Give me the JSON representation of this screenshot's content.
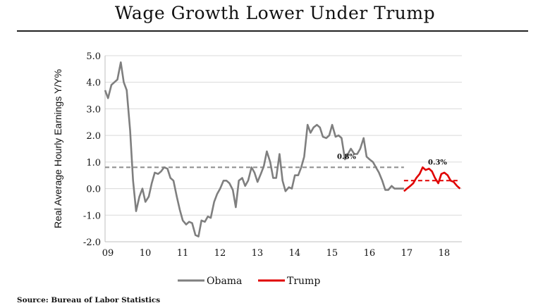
{
  "header": {
    "title": "Wage Growth Lower Under Trump"
  },
  "source": "Source: Bureau of Labor Statistics",
  "chart_data": {
    "type": "line",
    "title": "Wage Growth Lower Under Trump",
    "xlabel": "",
    "ylabel": "Real Average Hourly Earnings Y/Y%",
    "xlim": [
      2009,
      2018.55
    ],
    "ylim": [
      -2.0,
      5.0
    ],
    "yticks": [
      5.0,
      4.0,
      3.0,
      2.0,
      1.0,
      0.0,
      -1.0,
      -2.0
    ],
    "ytick_labels": [
      "5.0",
      "4.0",
      "3.0",
      "2.0",
      "1.0",
      "0.0",
      "-1.0",
      "-2.0"
    ],
    "xticks": [
      2009,
      2010,
      2011,
      2012,
      2013,
      2014,
      2015,
      2016,
      2017,
      2018
    ],
    "xtick_labels": [
      "09",
      "10",
      "11",
      "12",
      "13",
      "14",
      "15",
      "16",
      "17",
      "18"
    ],
    "grid": true,
    "legend_position": "bottom",
    "series": [
      {
        "name": "Obama",
        "color": "#7f7f7f",
        "x": [
          2009.0,
          2009.08,
          2009.17,
          2009.25,
          2009.33,
          2009.42,
          2009.5,
          2009.58,
          2009.67,
          2009.75,
          2009.83,
          2009.92,
          2010.0,
          2010.08,
          2010.17,
          2010.25,
          2010.33,
          2010.42,
          2010.5,
          2010.58,
          2010.67,
          2010.75,
          2010.83,
          2010.92,
          2011.0,
          2011.08,
          2011.17,
          2011.25,
          2011.33,
          2011.42,
          2011.5,
          2011.58,
          2011.67,
          2011.75,
          2011.83,
          2011.92,
          2012.0,
          2012.08,
          2012.17,
          2012.25,
          2012.33,
          2012.42,
          2012.5,
          2012.58,
          2012.67,
          2012.75,
          2012.83,
          2012.92,
          2013.0,
          2013.08,
          2013.17,
          2013.25,
          2013.33,
          2013.42,
          2013.5,
          2013.58,
          2013.67,
          2013.75,
          2013.83,
          2013.92,
          2014.0,
          2014.08,
          2014.17,
          2014.25,
          2014.33,
          2014.42,
          2014.5,
          2014.58,
          2014.67,
          2014.75,
          2014.83,
          2014.92,
          2015.0,
          2015.08,
          2015.17,
          2015.25,
          2015.33,
          2015.42,
          2015.5,
          2015.58,
          2015.67,
          2015.75,
          2015.83,
          2015.92,
          2016.0,
          2016.08,
          2016.17,
          2016.25,
          2016.33,
          2016.42,
          2016.5,
          2016.58,
          2016.67,
          2016.75,
          2016.83,
          2016.92,
          2017.0
        ],
        "values": [
          3.7,
          3.4,
          3.9,
          4.0,
          4.1,
          4.75,
          4.0,
          3.7,
          2.2,
          0.3,
          -0.85,
          -0.3,
          0.0,
          -0.5,
          -0.3,
          0.2,
          0.6,
          0.55,
          0.65,
          0.8,
          0.75,
          0.4,
          0.3,
          -0.3,
          -0.8,
          -1.2,
          -1.35,
          -1.25,
          -1.3,
          -1.75,
          -1.8,
          -1.2,
          -1.25,
          -1.05,
          -1.1,
          -0.5,
          -0.2,
          0.0,
          0.3,
          0.3,
          0.2,
          -0.05,
          -0.7,
          0.3,
          0.4,
          0.1,
          0.3,
          0.8,
          0.6,
          0.25,
          0.55,
          0.85,
          1.4,
          1.0,
          0.4,
          0.4,
          1.3,
          0.3,
          -0.1,
          0.05,
          0.0,
          0.5,
          0.5,
          0.8,
          1.2,
          2.4,
          2.1,
          2.3,
          2.4,
          2.3,
          1.95,
          1.9,
          2.0,
          2.4,
          1.95,
          2.0,
          1.9,
          1.1,
          1.3,
          1.5,
          1.3,
          1.3,
          1.5,
          1.9,
          1.2,
          1.1,
          1.0,
          0.8,
          0.6,
          0.3,
          -0.05,
          -0.05,
          0.1,
          0.0,
          0.0,
          0.0,
          0.0
        ]
      },
      {
        "name": "Trump",
        "color": "#e00000",
        "x": [
          2017.0,
          2017.08,
          2017.17,
          2017.25,
          2017.33,
          2017.42,
          2017.5,
          2017.58,
          2017.67,
          2017.75,
          2017.83,
          2017.92,
          2018.0,
          2018.08,
          2018.17,
          2018.25,
          2018.33,
          2018.42,
          2018.5
        ],
        "values": [
          -0.1,
          0.0,
          0.1,
          0.2,
          0.4,
          0.55,
          0.8,
          0.7,
          0.75,
          0.65,
          0.4,
          0.2,
          0.55,
          0.6,
          0.5,
          0.3,
          0.25,
          0.1,
          0.0
        ]
      }
    ],
    "average_lines": [
      {
        "series": "Obama",
        "value": 0.8,
        "label": "0.8%",
        "color": "#8c8c8c",
        "style": "dashed"
      },
      {
        "series": "Trump",
        "value": 0.3,
        "label": "0.3%",
        "color": "#e00000",
        "style": "dashed"
      }
    ]
  }
}
